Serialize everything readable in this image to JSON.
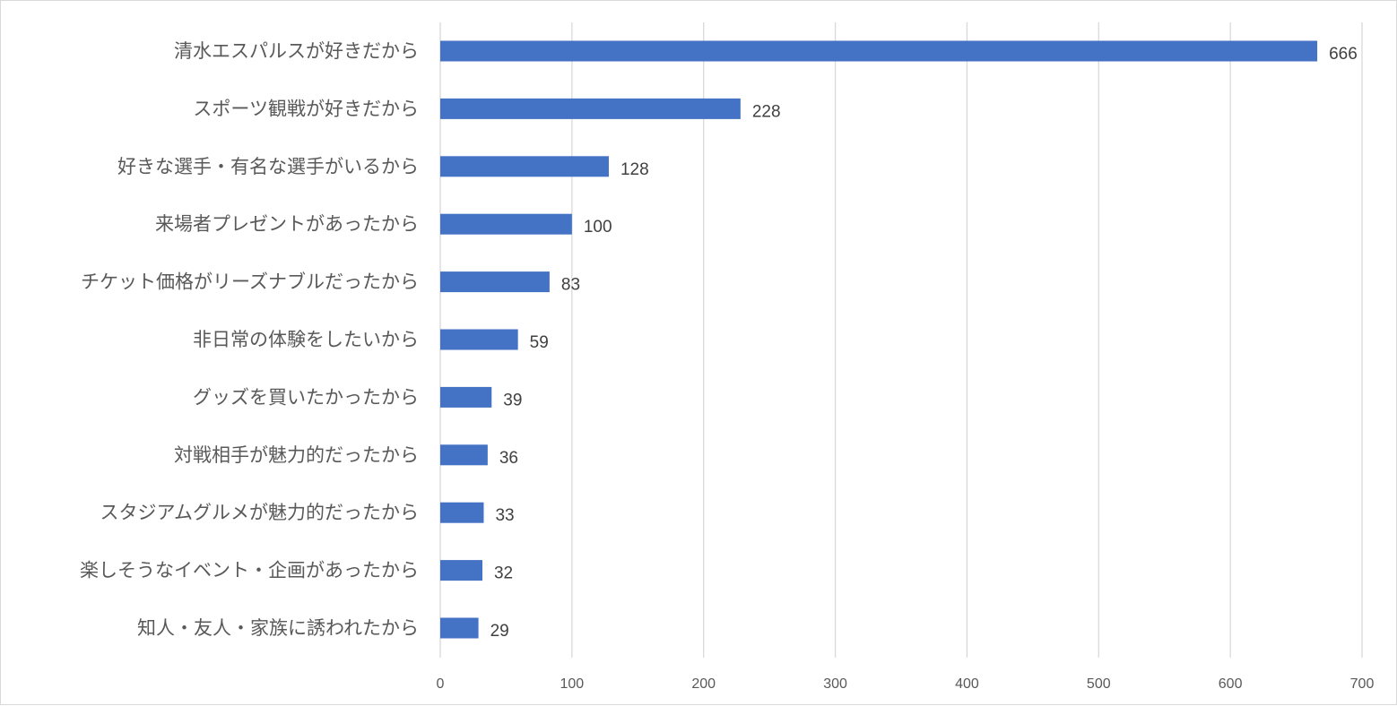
{
  "chart_data": {
    "type": "bar",
    "orientation": "horizontal",
    "categories": [
      "清水エスパルスが好きだから",
      "スポーツ観戦が好きだから",
      "好きな選手・有名な選手がいるから",
      "来場者プレゼントがあったから",
      "チケット価格がリーズナブルだったから",
      "非日常の体験をしたいから",
      "グッズを買いたかったから",
      "対戦相手が魅力的だったから",
      "スタジアムグルメが魅力的だったから",
      "楽しそうなイベント・企画があったから",
      "知人・友人・家族に誘われたから"
    ],
    "values": [
      666,
      228,
      128,
      100,
      83,
      59,
      39,
      36,
      33,
      32,
      29
    ],
    "xlim": [
      0,
      700
    ],
    "xticks": [
      0,
      100,
      200,
      300,
      400,
      500,
      600,
      700
    ],
    "grid": true,
    "legend": "none",
    "data_labels": true,
    "bar_color": "#4472c4",
    "gridline_color": "#d9d9d9",
    "text_color": "#595959"
  }
}
